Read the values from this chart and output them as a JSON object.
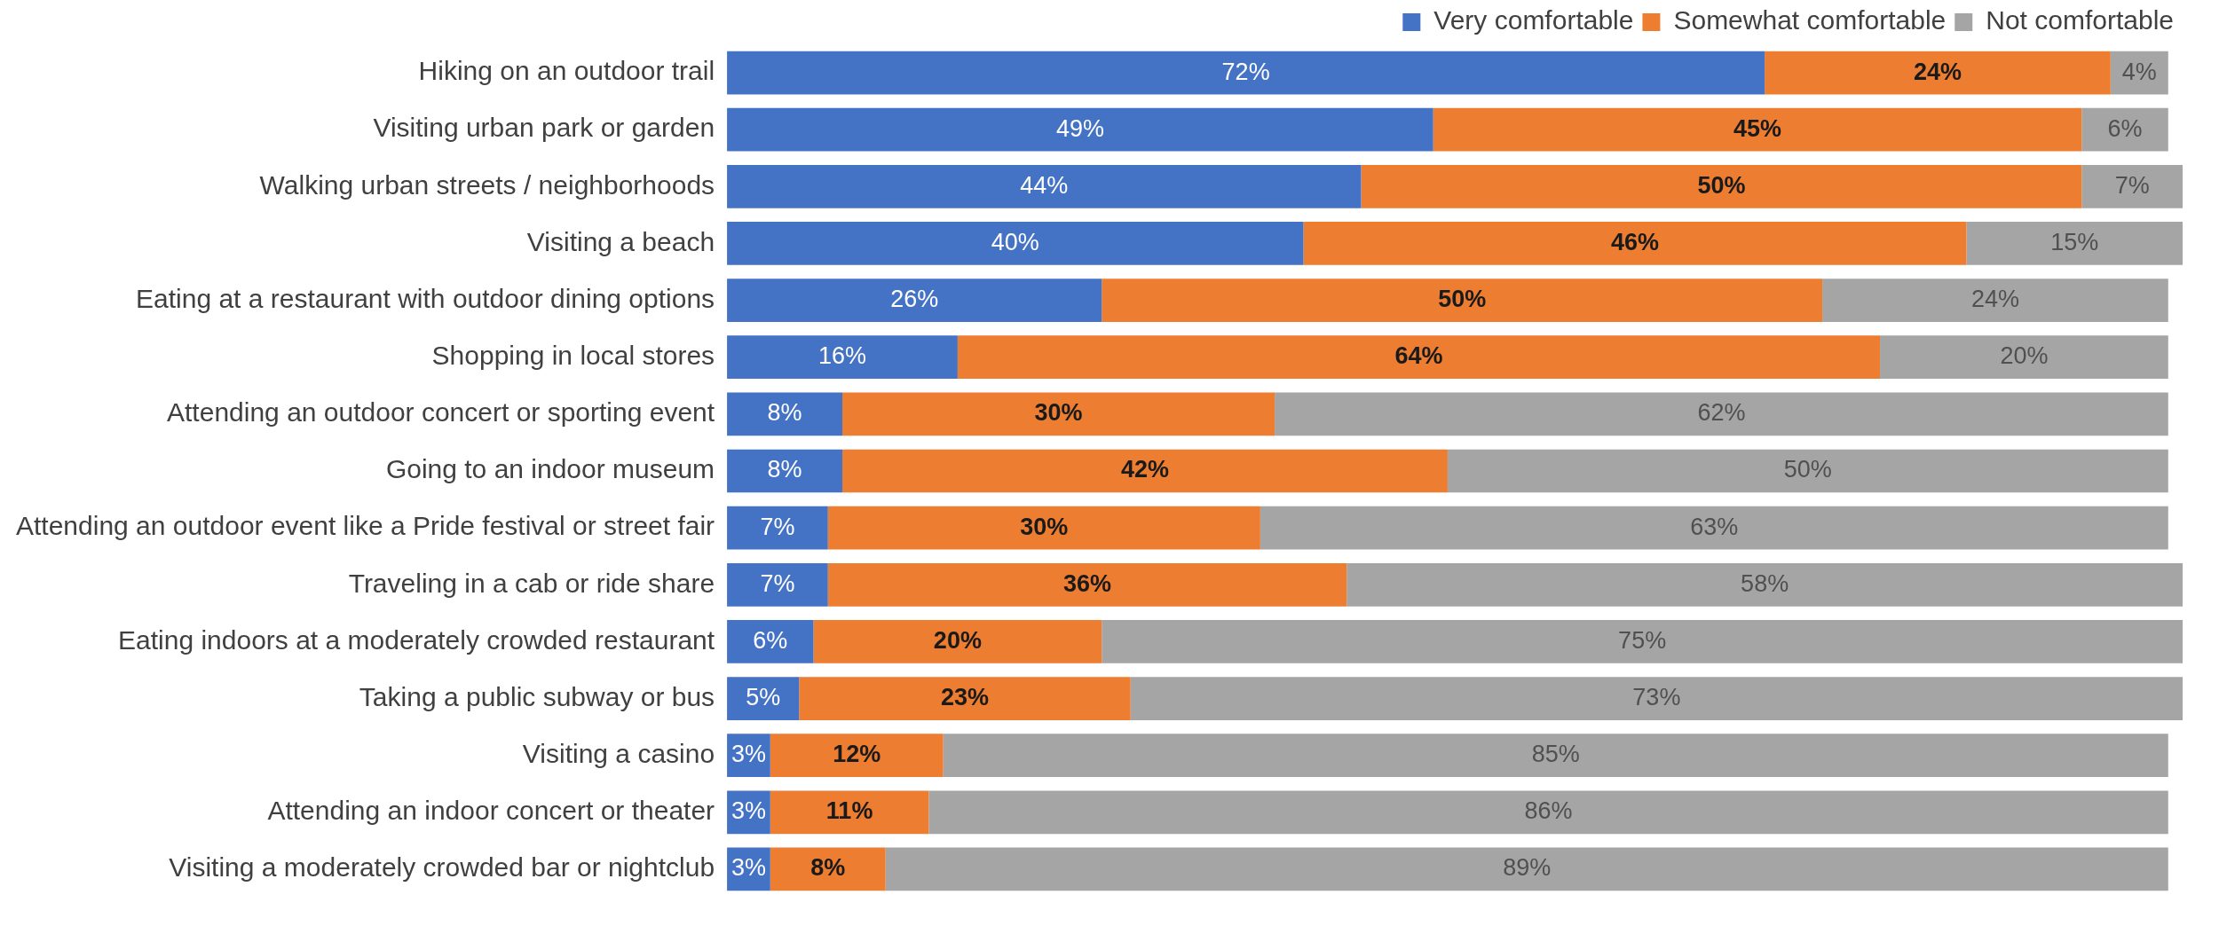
{
  "chart_data": {
    "type": "bar",
    "orientation": "horizontal",
    "stacked": true,
    "legend": "top right",
    "tick_labels": "y",
    "categories": [
      "Hiking on an outdoor trail",
      "Visiting urban park or garden",
      "Walking urban streets / neighborhoods",
      "Visiting a beach",
      "Eating at a restaurant with outdoor dining options",
      "Shopping in local stores",
      "Attending an outdoor concert or sporting event",
      "Going to an indoor museum",
      "Attending an outdoor event like a Pride festival or street fair",
      "Traveling in a cab or ride share",
      "Eating indoors at a moderately crowded restaurant",
      "Taking a public subway or bus",
      "Visiting a casino",
      "Attending an indoor concert or theater",
      "Visiting a moderately crowded bar or nightclub"
    ],
    "series": [
      {
        "name": "Very comfortable",
        "color": "#4472c4",
        "values": [
          72,
          49,
          44,
          40,
          26,
          16,
          8,
          8,
          7,
          7,
          6,
          5,
          3,
          3,
          3
        ],
        "value_labels": [
          "72%",
          "49%",
          "44%",
          "40%",
          "26%",
          "16%",
          "8%",
          "8%",
          "7%",
          "7%",
          "6%",
          "5%",
          "3%",
          "3%",
          "3%"
        ]
      },
      {
        "name": "Somewhat comfortable",
        "color": "#ed7d31",
        "values": [
          24,
          45,
          50,
          46,
          50,
          64,
          30,
          42,
          30,
          36,
          20,
          23,
          12,
          11,
          8
        ],
        "value_labels": [
          "24%",
          "45%",
          "50%",
          "46%",
          "50%",
          "64%",
          "30%",
          "42%",
          "30%",
          "36%",
          "20%",
          "23%",
          "12%",
          "11%",
          "8%"
        ]
      },
      {
        "name": "Not comfortable",
        "color": "#a5a5a5",
        "values": [
          4,
          6,
          7,
          15,
          24,
          20,
          62,
          50,
          63,
          58,
          75,
          73,
          85,
          86,
          89
        ],
        "value_labels": [
          "4%",
          "6%",
          "7%",
          "15%",
          "24%",
          "20%",
          "62%",
          "50%",
          "63%",
          "58%",
          "75%",
          "73%",
          "85%",
          "86%",
          "89%"
        ]
      }
    ]
  }
}
